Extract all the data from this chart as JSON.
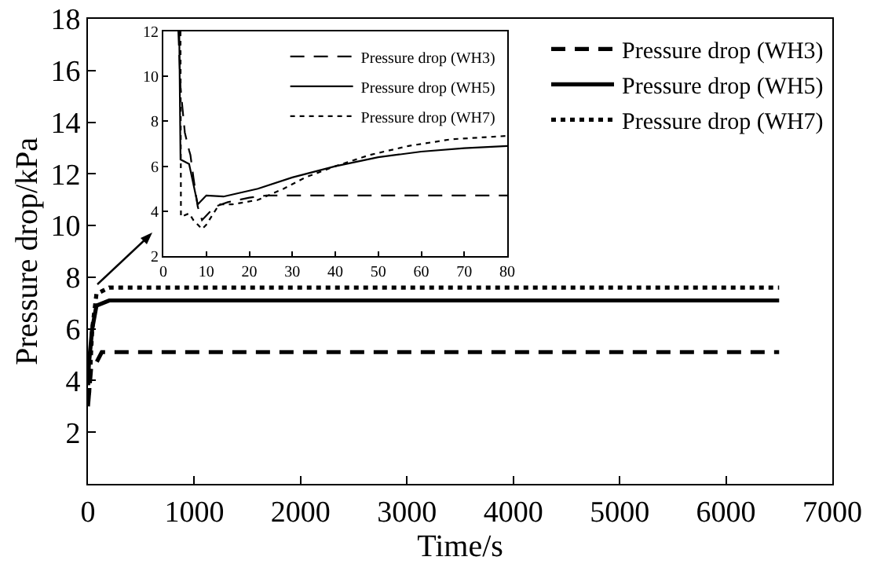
{
  "chart_data": [
    {
      "type": "line",
      "xlabel": "Time/s",
      "ylabel": "Pressure drop/kPa",
      "xlim": [
        0,
        7000
      ],
      "ylim": [
        0,
        18
      ],
      "xticks": [
        0,
        1000,
        2000,
        3000,
        4000,
        5000,
        6000,
        7000
      ],
      "yticks": [
        2,
        4,
        6,
        8,
        10,
        12,
        14,
        16,
        18
      ],
      "grid": false,
      "legend": "top right",
      "marker": "none",
      "series": [
        {
          "name": "Pressure drop (WH3)",
          "color": "#000000",
          "line_style": "dashed",
          "x": [
            0,
            30,
            80,
            130,
            300,
            6500
          ],
          "values": [
            3.0,
            4.5,
            4.7,
            5.1,
            5.1,
            5.1
          ]
        },
        {
          "name": "Pressure drop (WH5)",
          "color": "#000000",
          "line_style": "solid",
          "x": [
            0,
            10,
            40,
            80,
            200,
            6500
          ],
          "values": [
            4.0,
            4.7,
            6.0,
            6.9,
            7.1,
            7.1
          ]
        },
        {
          "name": "Pressure drop (WH7)",
          "color": "#000000",
          "line_style": "dotted",
          "x": [
            0,
            10,
            40,
            80,
            200,
            6500
          ],
          "values": [
            4.0,
            3.4,
            6.0,
            7.35,
            7.6,
            7.6
          ]
        }
      ]
    },
    {
      "type": "line",
      "xlim": [
        0,
        80
      ],
      "ylim": [
        2,
        12
      ],
      "xticks": [
        0,
        10,
        20,
        30,
        40,
        50,
        60,
        70,
        80
      ],
      "yticks": [
        2,
        4,
        6,
        8,
        10,
        12
      ],
      "grid": false,
      "legend": "top right",
      "marker": "none",
      "series": [
        {
          "name": "Pressure drop (WH3)",
          "color": "#000000",
          "line_style": "dashed",
          "x": [
            3.5,
            4,
            5,
            6,
            6.3,
            7,
            8,
            9,
            10,
            12,
            15,
            20,
            24,
            30,
            40,
            50,
            60,
            70,
            80
          ],
          "values": [
            12,
            9.5,
            7.5,
            6.7,
            6.5,
            5.5,
            4.2,
            3.6,
            3.8,
            4.2,
            4.4,
            4.6,
            4.7,
            4.7,
            4.7,
            4.7,
            4.7,
            4.7,
            4.7
          ]
        },
        {
          "name": "Pressure drop (WH5)",
          "color": "#000000",
          "line_style": "solid",
          "x": [
            3.7,
            4,
            6,
            8,
            10,
            14,
            22,
            30,
            40,
            50,
            60,
            70,
            80
          ],
          "values": [
            12,
            6.3,
            6.1,
            4.3,
            4.7,
            4.65,
            5.0,
            5.5,
            6.0,
            6.4,
            6.65,
            6.8,
            6.9
          ]
        },
        {
          "name": "Pressure drop (WH7)",
          "color": "#000000",
          "line_style": "dotted",
          "x": [
            4,
            4.1,
            6,
            7,
            9,
            10,
            13,
            16,
            22,
            28,
            33,
            40,
            48,
            57,
            67,
            80
          ],
          "values": [
            12,
            3.75,
            3.9,
            3.6,
            3.2,
            3.4,
            4.3,
            4.3,
            4.5,
            5.0,
            5.5,
            6.0,
            6.5,
            6.9,
            7.2,
            7.35
          ]
        }
      ]
    }
  ]
}
